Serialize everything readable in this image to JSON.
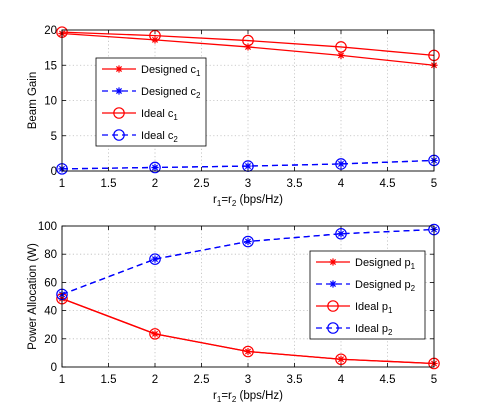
{
  "chart_data": [
    {
      "type": "line",
      "xlabel_parts": [
        "r",
        "1",
        "=r",
        "2",
        " (bps/Hz)"
      ],
      "ylabel": "Beam Gain",
      "xlim": [
        1,
        5
      ],
      "ylim": [
        0,
        20
      ],
      "xticks": [
        "1",
        "1.5",
        "2",
        "2.5",
        "3",
        "3.5",
        "4",
        "4.5",
        "5"
      ],
      "yticks": [
        "0",
        "5",
        "10",
        "15",
        "20"
      ],
      "grid": true,
      "legend_position": "center-left",
      "x": [
        1,
        2,
        3,
        4,
        5
      ],
      "series": [
        {
          "name": "Designed c",
          "sub": "1",
          "color": "#ff0000",
          "style": "solid",
          "marker": "star",
          "values": [
            19.5,
            18.6,
            17.6,
            16.4,
            15.0
          ]
        },
        {
          "name": "Designed c",
          "sub": "2",
          "color": "#0000ff",
          "style": "dashed",
          "marker": "star",
          "values": [
            0.3,
            0.5,
            0.7,
            1.0,
            1.5
          ]
        },
        {
          "name": "Ideal c",
          "sub": "1",
          "color": "#ff0000",
          "style": "solid",
          "marker": "circle",
          "values": [
            19.7,
            19.2,
            18.5,
            17.6,
            16.4
          ]
        },
        {
          "name": "Ideal c",
          "sub": "2",
          "color": "#0000ff",
          "style": "dashed",
          "marker": "circle",
          "values": [
            0.3,
            0.5,
            0.7,
            1.0,
            1.5
          ]
        }
      ]
    },
    {
      "type": "line",
      "xlabel_parts": [
        "r",
        "1",
        "=r",
        "2",
        " (bps/Hz)"
      ],
      "ylabel": "Power Allocation (W)",
      "xlim": [
        1,
        5
      ],
      "ylim": [
        0,
        100
      ],
      "xticks": [
        "1",
        "1.5",
        "2",
        "2.5",
        "3",
        "3.5",
        "4",
        "4.5",
        "5"
      ],
      "yticks": [
        "0",
        "20",
        "40",
        "60",
        "80",
        "100"
      ],
      "grid": true,
      "legend_position": "center-right",
      "x": [
        1,
        2,
        3,
        4,
        5
      ],
      "series": [
        {
          "name": "Designed p",
          "sub": "1",
          "color": "#ff0000",
          "style": "solid",
          "marker": "star",
          "values": [
            48.5,
            23.5,
            11.0,
            5.5,
            2.5
          ]
        },
        {
          "name": "Designed p",
          "sub": "2",
          "color": "#0000ff",
          "style": "dashed",
          "marker": "star",
          "values": [
            51.5,
            76.5,
            89.0,
            94.5,
            97.5
          ]
        },
        {
          "name": "Ideal p",
          "sub": "1",
          "color": "#ff0000",
          "style": "solid",
          "marker": "circle",
          "values": [
            48.5,
            23.5,
            11.0,
            5.5,
            2.5
          ]
        },
        {
          "name": "Ideal p",
          "sub": "2",
          "color": "#0000ff",
          "style": "dashed",
          "marker": "circle",
          "values": [
            51.5,
            76.5,
            89.0,
            94.5,
            97.5
          ]
        }
      ]
    }
  ]
}
